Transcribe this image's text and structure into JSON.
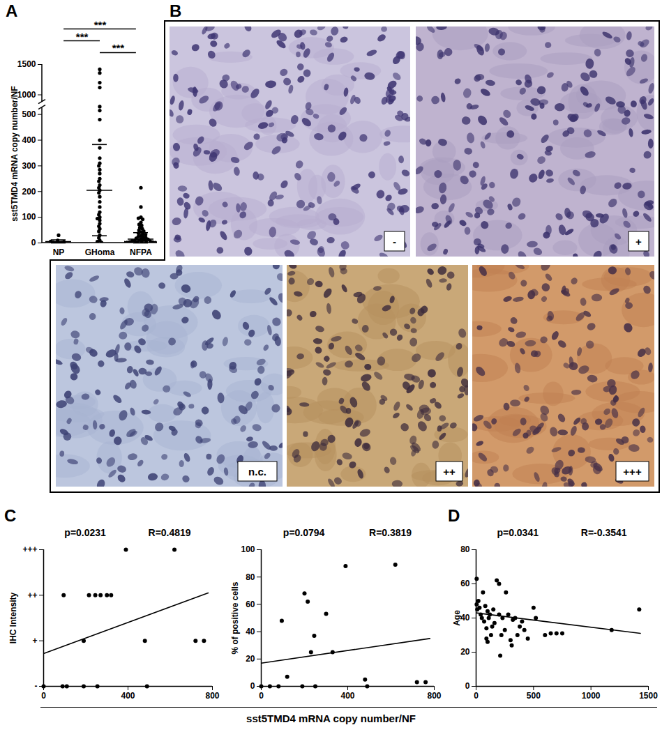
{
  "chart_data": [
    {
      "title": "A",
      "type": "dot_strip",
      "ylabel": "sst5TMD4 mRNA copy number/NF",
      "categories": [
        "NP",
        "GHoma",
        "NFPA"
      ],
      "values": [
        [
          0,
          0,
          1,
          2,
          4,
          6,
          10,
          30
        ],
        [
          1420,
          1360,
          1200,
          1120,
          700,
          600,
          480,
          400,
          370,
          330,
          310,
          300,
          285,
          270,
          250,
          240,
          225,
          215,
          205,
          195,
          180,
          160,
          140,
          120,
          110,
          100,
          95,
          88,
          75,
          65,
          55,
          45,
          30,
          20,
          10,
          5,
          2
        ],
        [
          215,
          140,
          100,
          96,
          92,
          80,
          72,
          68,
          60,
          55,
          50,
          46,
          42,
          38,
          35,
          32,
          28,
          25,
          22,
          20,
          18,
          16,
          14,
          12,
          10,
          9,
          8,
          7,
          6,
          5,
          4,
          3,
          2,
          2,
          1,
          1,
          0,
          0,
          0,
          0
        ]
      ],
      "summary": [
        {
          "mean": 5,
          "low": 0,
          "high": 12
        },
        {
          "mean": 205,
          "low": 28,
          "high": 383
        },
        {
          "mean": 15,
          "low": 0,
          "high": 40
        }
      ],
      "annotations": [
        {
          "from": "NP",
          "to": "NFPA",
          "label": "***"
        },
        {
          "from": "NP",
          "to": "GHoma",
          "label": "***"
        },
        {
          "from": "GHoma",
          "to": "NFPA",
          "label": "***"
        }
      ],
      "ylim": [
        0,
        1500
      ],
      "yticks": [
        0,
        100,
        200,
        300,
        400,
        500,
        1000,
        1500
      ]
    },
    {
      "title": "B",
      "type": "image_grid",
      "labels": [
        "-",
        "+",
        "n.c.",
        "++",
        "+++"
      ]
    },
    {
      "title": "C",
      "type": "scatter",
      "xlabel": "sst5TMD4 mRNA copy number/NF",
      "ylabel": "IHC Intensity",
      "annotations": [
        "p=0.0231",
        "R=0.4819"
      ],
      "x": [
        0,
        90,
        110,
        190,
        255,
        490,
        190,
        480,
        720,
        760,
        95,
        215,
        245,
        270,
        300,
        320,
        390,
        620
      ],
      "values": [
        0,
        0,
        0,
        0,
        0,
        0,
        1,
        1,
        1,
        1,
        2,
        2,
        2,
        2,
        2,
        2,
        3,
        3
      ],
      "trendline": {
        "x": [
          0,
          780
        ],
        "y": [
          0.72,
          2.05
        ]
      },
      "xlim": [
        0,
        800
      ],
      "xticks": [
        0,
        400,
        800
      ],
      "ylim": [
        0,
        3
      ],
      "yticks": [
        {
          "value": 0,
          "label": "-"
        },
        {
          "value": 1,
          "label": "+"
        },
        {
          "value": 2,
          "label": "++"
        },
        {
          "value": 3,
          "label": "+++"
        }
      ]
    },
    {
      "type": "scatter",
      "ylabel": "% of positive cells",
      "annotations": [
        "p=0.0794",
        "R=0.3819"
      ],
      "x": [
        0,
        40,
        80,
        95,
        120,
        190,
        200,
        215,
        230,
        245,
        250,
        300,
        330,
        390,
        480,
        490,
        620,
        720,
        760
      ],
      "values": [
        0,
        0,
        0,
        48,
        7,
        0,
        68,
        62,
        25,
        37,
        0,
        53,
        25,
        88,
        5,
        0,
        89,
        3,
        3
      ],
      "trendline": {
        "x": [
          0,
          780
        ],
        "y": [
          17,
          35
        ]
      },
      "xlim": [
        0,
        800
      ],
      "xticks": [
        0,
        400,
        800
      ],
      "ylim": [
        0,
        100
      ],
      "yticks": [
        0,
        20,
        40,
        60,
        80,
        100
      ]
    },
    {
      "title": "D",
      "type": "scatter",
      "ylabel": "Age",
      "annotations": [
        "p=0.0341",
        "R=-0.3541"
      ],
      "x": [
        5,
        5,
        10,
        20,
        30,
        40,
        50,
        60,
        70,
        80,
        90,
        90,
        100,
        100,
        110,
        120,
        130,
        140,
        150,
        160,
        180,
        200,
        200,
        210,
        220,
        230,
        250,
        260,
        280,
        300,
        310,
        320,
        340,
        360,
        380,
        400,
        420,
        450,
        500,
        520,
        600,
        650,
        700,
        750,
        1180,
        1420
      ],
      "values": [
        63,
        48,
        45,
        50,
        46,
        42,
        40,
        55,
        38,
        47,
        34,
        28,
        26,
        44,
        40,
        42,
        30,
        35,
        45,
        37,
        62,
        60,
        42,
        18,
        30,
        40,
        33,
        55,
        42,
        27,
        24,
        39,
        40,
        30,
        35,
        38,
        33,
        28,
        46,
        40,
        30,
        31,
        31,
        31,
        33,
        45
      ],
      "trendline": {
        "x": [
          0,
          1430
        ],
        "y": [
          43,
          31
        ]
      },
      "xlim": [
        0,
        1500
      ],
      "xticks": [
        0,
        500,
        1000,
        1500
      ],
      "ylim": [
        0,
        80
      ],
      "yticks": [
        0,
        20,
        40,
        60,
        80
      ]
    }
  ]
}
